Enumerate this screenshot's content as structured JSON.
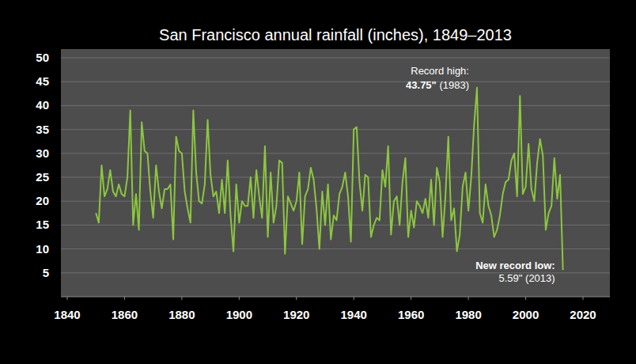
{
  "chart_data": {
    "type": "line",
    "title": "San Francisco annual rainfall (inches), 1849–2013",
    "x": [
      1850,
      1851,
      1852,
      1853,
      1854,
      1855,
      1856,
      1857,
      1858,
      1859,
      1860,
      1861,
      1862,
      1863,
      1864,
      1865,
      1866,
      1867,
      1868,
      1869,
      1870,
      1871,
      1872,
      1873,
      1874,
      1875,
      1876,
      1877,
      1878,
      1879,
      1880,
      1881,
      1882,
      1883,
      1884,
      1885,
      1886,
      1887,
      1888,
      1889,
      1890,
      1891,
      1892,
      1893,
      1894,
      1895,
      1896,
      1897,
      1898,
      1899,
      1900,
      1901,
      1902,
      1903,
      1904,
      1905,
      1906,
      1907,
      1908,
      1909,
      1910,
      1911,
      1912,
      1913,
      1914,
      1915,
      1916,
      1917,
      1918,
      1919,
      1920,
      1921,
      1922,
      1923,
      1924,
      1925,
      1926,
      1927,
      1928,
      1929,
      1930,
      1931,
      1932,
      1933,
      1934,
      1935,
      1936,
      1937,
      1938,
      1939,
      1940,
      1941,
      1942,
      1943,
      1944,
      1945,
      1946,
      1947,
      1948,
      1949,
      1950,
      1951,
      1952,
      1953,
      1954,
      1955,
      1956,
      1957,
      1958,
      1959,
      1960,
      1961,
      1962,
      1963,
      1964,
      1965,
      1966,
      1967,
      1968,
      1969,
      1970,
      1971,
      1972,
      1973,
      1974,
      1975,
      1976,
      1977,
      1978,
      1979,
      1980,
      1981,
      1982,
      1983,
      1984,
      1985,
      1986,
      1987,
      1988,
      1989,
      1990,
      1991,
      1992,
      1993,
      1994,
      1995,
      1996,
      1997,
      1998,
      1999,
      2000,
      2001,
      2002,
      2003,
      2004,
      2005,
      2006,
      2007,
      2008,
      2009,
      2010,
      2011,
      2012,
      2013
    ],
    "values": [
      17.5,
      15.5,
      27.5,
      21,
      22.5,
      26.5,
      22,
      21,
      23.5,
      21.5,
      21,
      25,
      39,
      15,
      21.5,
      14,
      36.5,
      30.5,
      30,
      22,
      16.5,
      27.5,
      22,
      18.5,
      22.5,
      22.5,
      23.5,
      12,
      33.5,
      30.5,
      30,
      22,
      18.5,
      15.5,
      39,
      26,
      20,
      19.5,
      23.5,
      37,
      25.5,
      21,
      22,
      17.5,
      24.5,
      17.5,
      28.5,
      17,
      9.5,
      23.5,
      15.5,
      20,
      19,
      19,
      25,
      16.5,
      26.5,
      21,
      16.5,
      31.5,
      12.5,
      26,
      15.5,
      19,
      28.5,
      28,
      9,
      21,
      19.5,
      18,
      20,
      26,
      11,
      21,
      22.5,
      27,
      24.5,
      18.5,
      10,
      22,
      15,
      23.5,
      12,
      17,
      16,
      21.5,
      23,
      26,
      21,
      11.5,
      35,
      35.5,
      24,
      18,
      25.5,
      25,
      12.5,
      15,
      16.5,
      16,
      26.5,
      23,
      31.5,
      13,
      20,
      21,
      15,
      24,
      29,
      12.5,
      18,
      14.5,
      20,
      19,
      17.5,
      20.5,
      16.5,
      24.5,
      15,
      27,
      24,
      12.5,
      21,
      33.5,
      16,
      18.5,
      9.5,
      13,
      23,
      26,
      18,
      25,
      36,
      43.75,
      17.5,
      15.5,
      23.5,
      19,
      17,
      12.5,
      14,
      17,
      21.5,
      24,
      24.5,
      28.5,
      30,
      21,
      42,
      21.5,
      23,
      32,
      22.5,
      20,
      28,
      33,
      29.5,
      14,
      17.5,
      19,
      29,
      20.5,
      25.5,
      5.59
    ],
    "color": "#8cc63f",
    "xlim": [
      1840,
      2020
    ],
    "xticks": [
      1840,
      1860,
      1880,
      1900,
      1920,
      1940,
      1960,
      1980,
      2000,
      2020
    ],
    "ylim": [
      0,
      50
    ],
    "yticks": [
      5,
      10,
      15,
      20,
      25,
      30,
      35,
      40,
      45,
      50
    ],
    "grid": true,
    "annotations": [
      {
        "lines": [
          "Record high:",
          "43.75\" (1983)"
        ]
      },
      {
        "lines": [
          "New record low:",
          "5.59\" (2013)"
        ]
      }
    ]
  }
}
